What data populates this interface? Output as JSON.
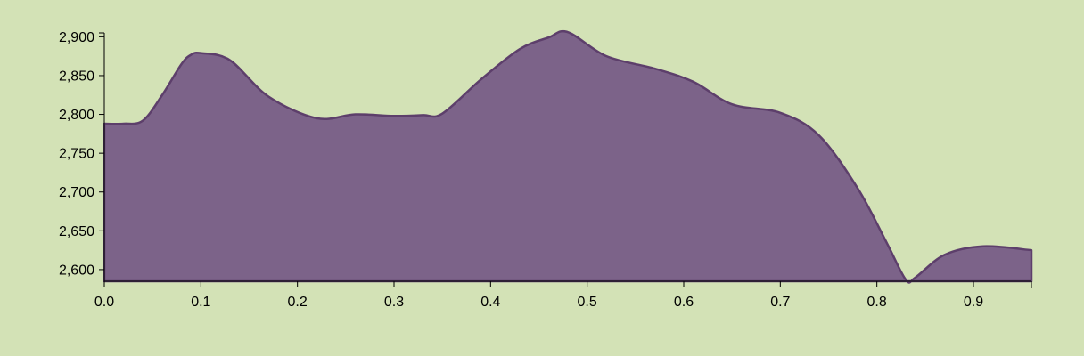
{
  "colors": {
    "background": "#d3e2b6",
    "area_fill": "#7c6389",
    "area_stroke": "#5d3f6b",
    "axis": "#000000",
    "text": "#000000"
  },
  "chart_data": {
    "type": "area",
    "x": [
      0.0,
      0.02,
      0.04,
      0.06,
      0.08,
      0.09,
      0.1,
      0.13,
      0.17,
      0.22,
      0.26,
      0.3,
      0.33,
      0.35,
      0.39,
      0.43,
      0.46,
      0.48,
      0.52,
      0.57,
      0.61,
      0.65,
      0.7,
      0.74,
      0.78,
      0.81,
      0.83,
      0.84,
      0.87,
      0.91,
      0.96
    ],
    "series": [
      {
        "values": [
          2788,
          2788,
          2792,
          2825,
          2865,
          2877,
          2879,
          2870,
          2823,
          2795,
          2800,
          2798,
          2799,
          2801,
          2845,
          2884,
          2899,
          2906,
          2875,
          2859,
          2842,
          2813,
          2802,
          2773,
          2705,
          2635,
          2587,
          2590,
          2619,
          2630,
          2625
        ]
      }
    ],
    "xlim": [
      0,
      0.96
    ],
    "ylim": [
      2585,
      2905
    ],
    "x_ticks": [
      "0.0",
      "0.1",
      "0.2",
      "0.3",
      "0.4",
      "0.5",
      "0.6",
      "0.7",
      "0.8",
      "0.9"
    ],
    "y_ticks": [
      "2,600",
      "2,650",
      "2,700",
      "2,750",
      "2,800",
      "2,850",
      "2,900"
    ],
    "title": "",
    "xlabel": "",
    "ylabel": "",
    "grid": false,
    "legend": "none"
  }
}
